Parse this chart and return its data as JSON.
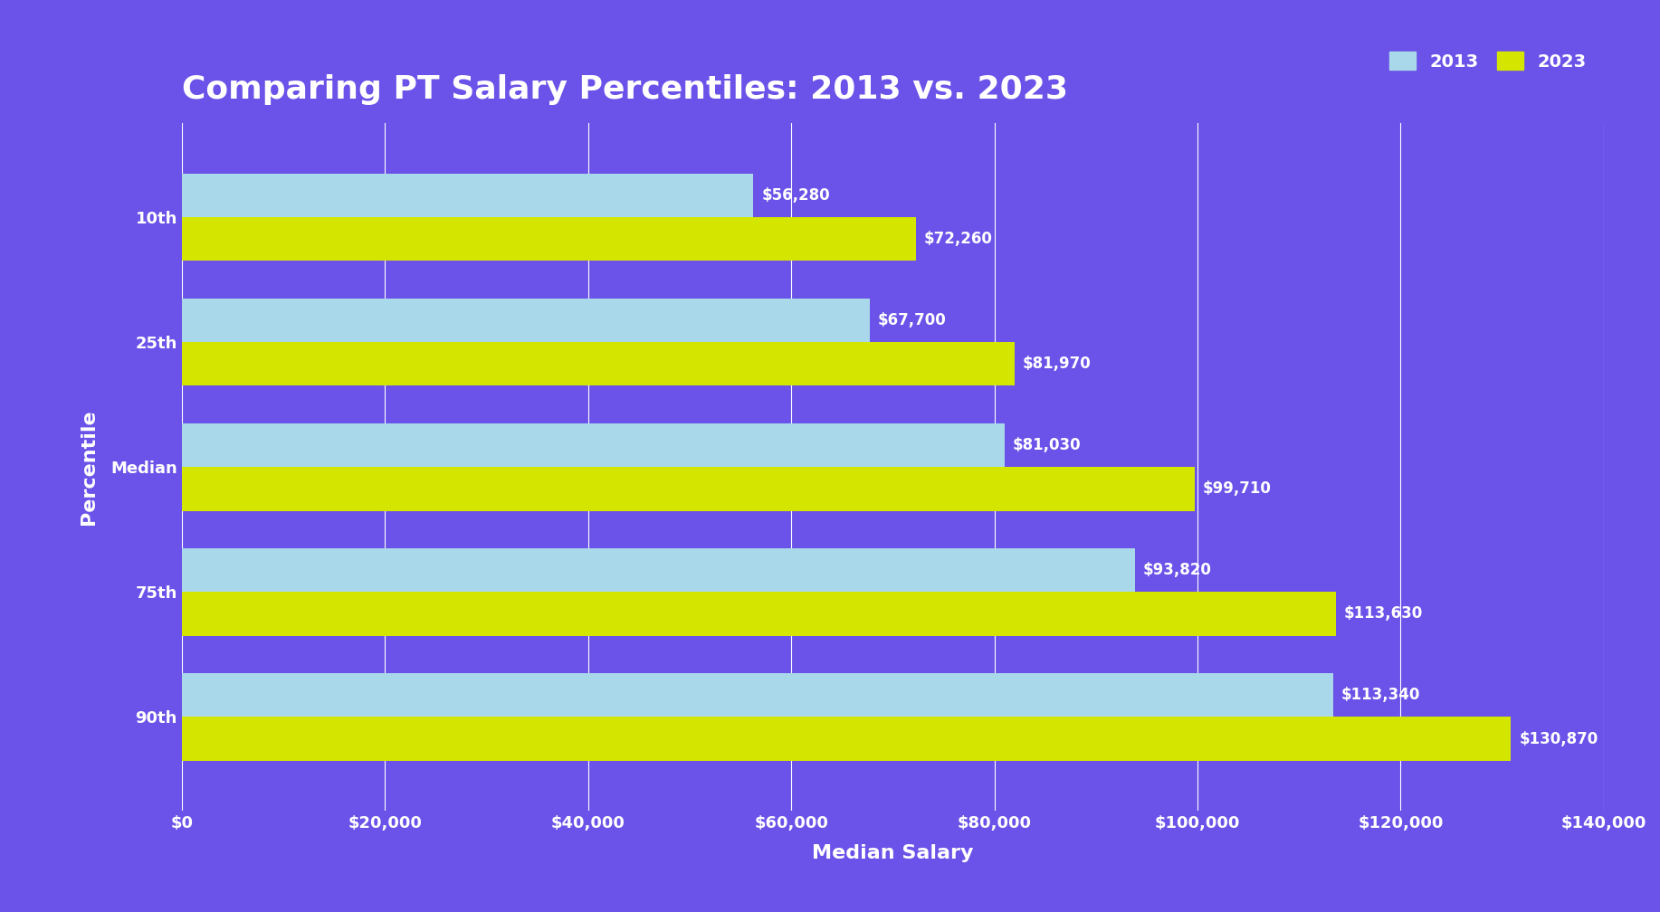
{
  "title": "Comparing PT Salary Percentiles: 2013 vs. 2023",
  "xlabel": "Median Salary",
  "ylabel": "Percentile",
  "background_color": "#6B52E8",
  "bar_color_2013": "#A8D8EA",
  "bar_color_2023": "#D4E600",
  "text_color": "#FFFFFF",
  "categories": [
    "10th",
    "25th",
    "Median",
    "75th",
    "90th"
  ],
  "values_2013": [
    56280,
    67700,
    81030,
    93820,
    113340
  ],
  "values_2023": [
    72260,
    81970,
    99710,
    113630,
    130870
  ],
  "xlim": [
    0,
    140000
  ],
  "xticks": [
    0,
    20000,
    40000,
    60000,
    80000,
    100000,
    120000,
    140000
  ],
  "xtick_labels": [
    "$0",
    "$20,000",
    "$40,000",
    "$60,000",
    "$80,000",
    "$100,000",
    "$120,000",
    "$140,000"
  ],
  "title_fontsize": 26,
  "axis_label_fontsize": 16,
  "tick_fontsize": 13,
  "bar_label_fontsize": 12,
  "legend_fontsize": 14,
  "legend_2013": "2013",
  "legend_2023": "2023"
}
